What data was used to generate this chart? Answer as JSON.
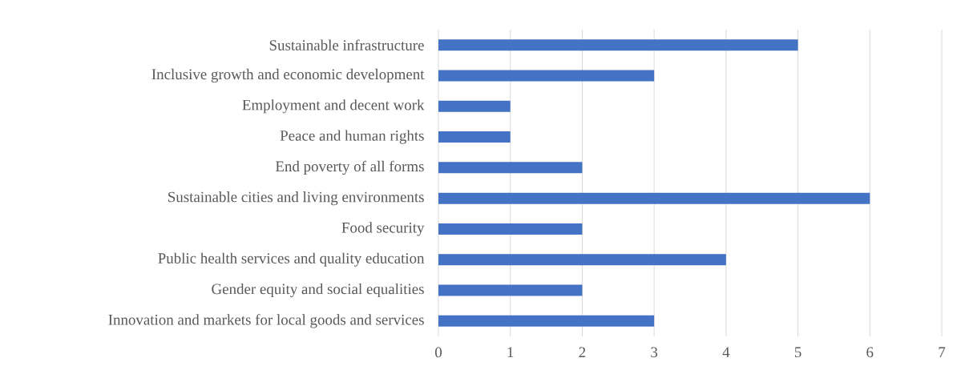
{
  "chart_data": {
    "type": "bar",
    "orientation": "horizontal",
    "categories": [
      "Sustainable infrastructure",
      "Inclusive growth and economic development",
      "Employment and decent work",
      "Peace and human rights",
      "End poverty of all forms",
      "Sustainable cities and living environments",
      "Food security",
      "Public health services and quality education",
      "Gender equity and social equalities",
      "Innovation and markets for local goods and services"
    ],
    "values": [
      5,
      3,
      1,
      1,
      2,
      6,
      2,
      4,
      2,
      3
    ],
    "color": "#4472c4",
    "xlim": [
      0,
      7
    ],
    "xticks": [
      0,
      1,
      2,
      3,
      4,
      5,
      6,
      7
    ],
    "grid": "x"
  }
}
